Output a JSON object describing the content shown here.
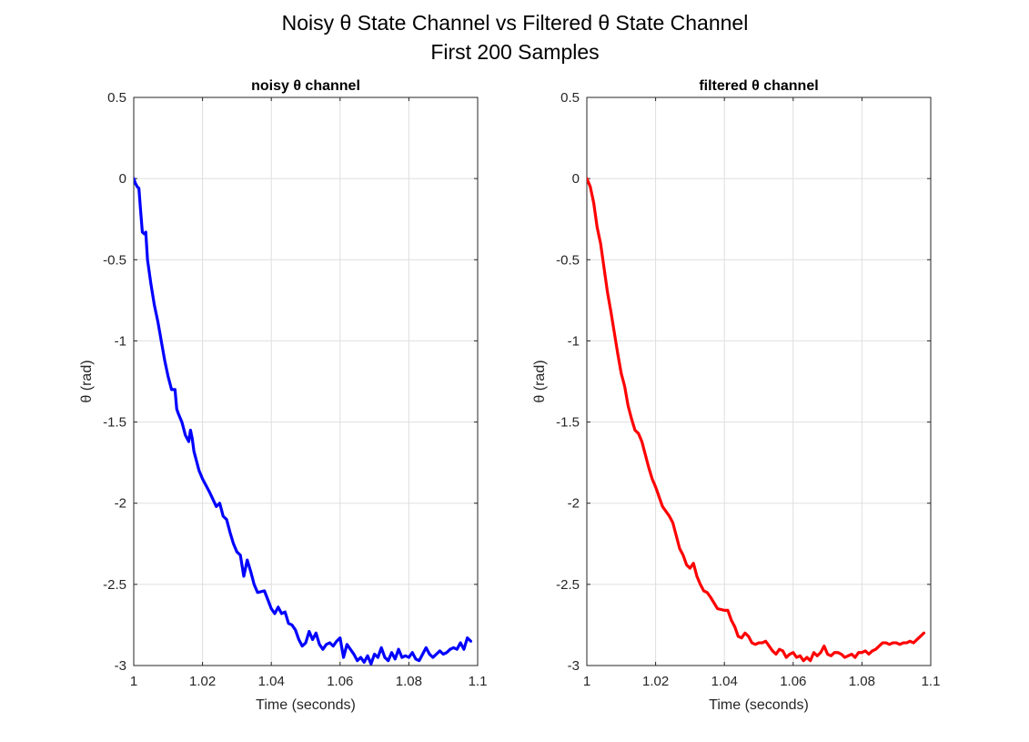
{
  "figure": {
    "title_line1": "Noisy θ State Channel vs Filtered θ State Channel",
    "title_line2": "First 200 Samples"
  },
  "chart_data": [
    {
      "type": "line",
      "title": "noisy θ channel",
      "xlabel": "Time (seconds)",
      "ylabel": "θ (rad)",
      "xlim": [
        1,
        1.1
      ],
      "ylim": [
        -3,
        0.5
      ],
      "xticks": [
        "1",
        "1.02",
        "1.04",
        "1.06",
        "1.08",
        "1.1"
      ],
      "yticks": [
        "0.5",
        "0",
        "-0.5",
        "-1",
        "-1.5",
        "-2",
        "-2.5",
        "-3"
      ],
      "grid": true,
      "series": [
        {
          "color": "#0000ff",
          "x": [
            1.0,
            1.0005,
            1.001,
            1.0015,
            1.002,
            1.0025,
            1.003,
            1.0035,
            1.004,
            1.005,
            1.006,
            1.007,
            1.008,
            1.009,
            1.01,
            1.011,
            1.012,
            1.0125,
            1.013,
            1.014,
            1.015,
            1.016,
            1.0165,
            1.017,
            1.0175,
            1.018,
            1.019,
            1.02,
            1.022,
            1.024,
            1.025,
            1.026,
            1.027,
            1.028,
            1.029,
            1.03,
            1.031,
            1.032,
            1.033,
            1.034,
            1.035,
            1.036,
            1.038,
            1.04,
            1.041,
            1.042,
            1.043,
            1.044,
            1.045,
            1.046,
            1.047,
            1.048,
            1.049,
            1.05,
            1.051,
            1.052,
            1.053,
            1.054,
            1.055,
            1.056,
            1.057,
            1.058,
            1.059,
            1.06,
            1.061,
            1.062,
            1.063,
            1.064,
            1.065,
            1.066,
            1.067,
            1.068,
            1.069,
            1.07,
            1.071,
            1.072,
            1.073,
            1.074,
            1.075,
            1.076,
            1.077,
            1.078,
            1.079,
            1.08,
            1.081,
            1.082,
            1.083,
            1.084,
            1.085,
            1.086,
            1.087,
            1.088,
            1.089,
            1.09,
            1.091,
            1.092,
            1.093,
            1.094,
            1.095,
            1.096,
            1.097,
            1.098
          ],
          "values": [
            0.0,
            -0.03,
            -0.05,
            -0.06,
            -0.2,
            -0.33,
            -0.34,
            -0.33,
            -0.5,
            -0.65,
            -0.78,
            -0.88,
            -1.0,
            -1.12,
            -1.22,
            -1.3,
            -1.3,
            -1.42,
            -1.45,
            -1.5,
            -1.58,
            -1.62,
            -1.55,
            -1.6,
            -1.68,
            -1.72,
            -1.8,
            -1.85,
            -1.93,
            -2.02,
            -2.0,
            -2.08,
            -2.1,
            -2.18,
            -2.25,
            -2.3,
            -2.32,
            -2.45,
            -2.35,
            -2.42,
            -2.5,
            -2.55,
            -2.54,
            -2.65,
            -2.68,
            -2.64,
            -2.68,
            -2.67,
            -2.74,
            -2.75,
            -2.78,
            -2.84,
            -2.88,
            -2.86,
            -2.79,
            -2.84,
            -2.8,
            -2.87,
            -2.9,
            -2.87,
            -2.86,
            -2.88,
            -2.85,
            -2.83,
            -2.95,
            -2.87,
            -2.9,
            -2.93,
            -2.97,
            -2.95,
            -2.98,
            -2.94,
            -2.99,
            -2.93,
            -2.95,
            -2.89,
            -2.95,
            -2.97,
            -2.92,
            -2.96,
            -2.9,
            -2.95,
            -2.94,
            -2.95,
            -2.92,
            -2.96,
            -2.97,
            -2.93,
            -2.89,
            -2.93,
            -2.95,
            -2.93,
            -2.91,
            -2.93,
            -2.92,
            -2.9,
            -2.89,
            -2.9,
            -2.86,
            -2.9,
            -2.83,
            -2.85
          ]
        }
      ]
    },
    {
      "type": "line",
      "title": "filtered θ channel",
      "xlabel": "Time (seconds)",
      "ylabel": "θ (rad)",
      "xlim": [
        1,
        1.1
      ],
      "ylim": [
        -3,
        0.5
      ],
      "xticks": [
        "1",
        "1.02",
        "1.04",
        "1.06",
        "1.08",
        "1.1"
      ],
      "yticks": [
        "0.5",
        "0",
        "-0.5",
        "-1",
        "-1.5",
        "-2",
        "-2.5",
        "-3"
      ],
      "grid": true,
      "series": [
        {
          "color": "#ff0000",
          "x": [
            1.0,
            1.001,
            1.002,
            1.003,
            1.004,
            1.005,
            1.006,
            1.007,
            1.008,
            1.009,
            1.01,
            1.011,
            1.012,
            1.013,
            1.014,
            1.015,
            1.016,
            1.017,
            1.018,
            1.019,
            1.02,
            1.022,
            1.024,
            1.025,
            1.026,
            1.027,
            1.028,
            1.029,
            1.03,
            1.031,
            1.032,
            1.033,
            1.034,
            1.035,
            1.036,
            1.038,
            1.04,
            1.041,
            1.042,
            1.043,
            1.044,
            1.045,
            1.046,
            1.047,
            1.048,
            1.049,
            1.05,
            1.051,
            1.052,
            1.053,
            1.054,
            1.055,
            1.056,
            1.057,
            1.058,
            1.059,
            1.06,
            1.061,
            1.062,
            1.063,
            1.064,
            1.065,
            1.066,
            1.067,
            1.068,
            1.069,
            1.07,
            1.071,
            1.072,
            1.073,
            1.074,
            1.075,
            1.076,
            1.077,
            1.078,
            1.079,
            1.08,
            1.081,
            1.082,
            1.083,
            1.084,
            1.085,
            1.086,
            1.087,
            1.088,
            1.089,
            1.09,
            1.091,
            1.092,
            1.093,
            1.094,
            1.095,
            1.096,
            1.097,
            1.098
          ],
          "values": [
            0.0,
            -0.05,
            -0.15,
            -0.3,
            -0.4,
            -0.55,
            -0.7,
            -0.82,
            -0.95,
            -1.08,
            -1.2,
            -1.28,
            -1.4,
            -1.48,
            -1.55,
            -1.57,
            -1.62,
            -1.7,
            -1.78,
            -1.85,
            -1.9,
            -2.02,
            -2.08,
            -2.12,
            -2.2,
            -2.28,
            -2.32,
            -2.38,
            -2.4,
            -2.37,
            -2.45,
            -2.5,
            -2.54,
            -2.55,
            -2.58,
            -2.65,
            -2.66,
            -2.66,
            -2.72,
            -2.76,
            -2.82,
            -2.83,
            -2.8,
            -2.82,
            -2.86,
            -2.87,
            -2.86,
            -2.86,
            -2.85,
            -2.88,
            -2.91,
            -2.93,
            -2.9,
            -2.91,
            -2.95,
            -2.93,
            -2.92,
            -2.95,
            -2.94,
            -2.97,
            -2.95,
            -2.97,
            -2.92,
            -2.94,
            -2.92,
            -2.88,
            -2.93,
            -2.94,
            -2.92,
            -2.92,
            -2.93,
            -2.95,
            -2.94,
            -2.93,
            -2.95,
            -2.92,
            -2.92,
            -2.91,
            -2.93,
            -2.91,
            -2.9,
            -2.88,
            -2.86,
            -2.86,
            -2.87,
            -2.86,
            -2.86,
            -2.87,
            -2.86,
            -2.86,
            -2.85,
            -2.86,
            -2.84,
            -2.82,
            -2.8
          ]
        }
      ]
    }
  ]
}
